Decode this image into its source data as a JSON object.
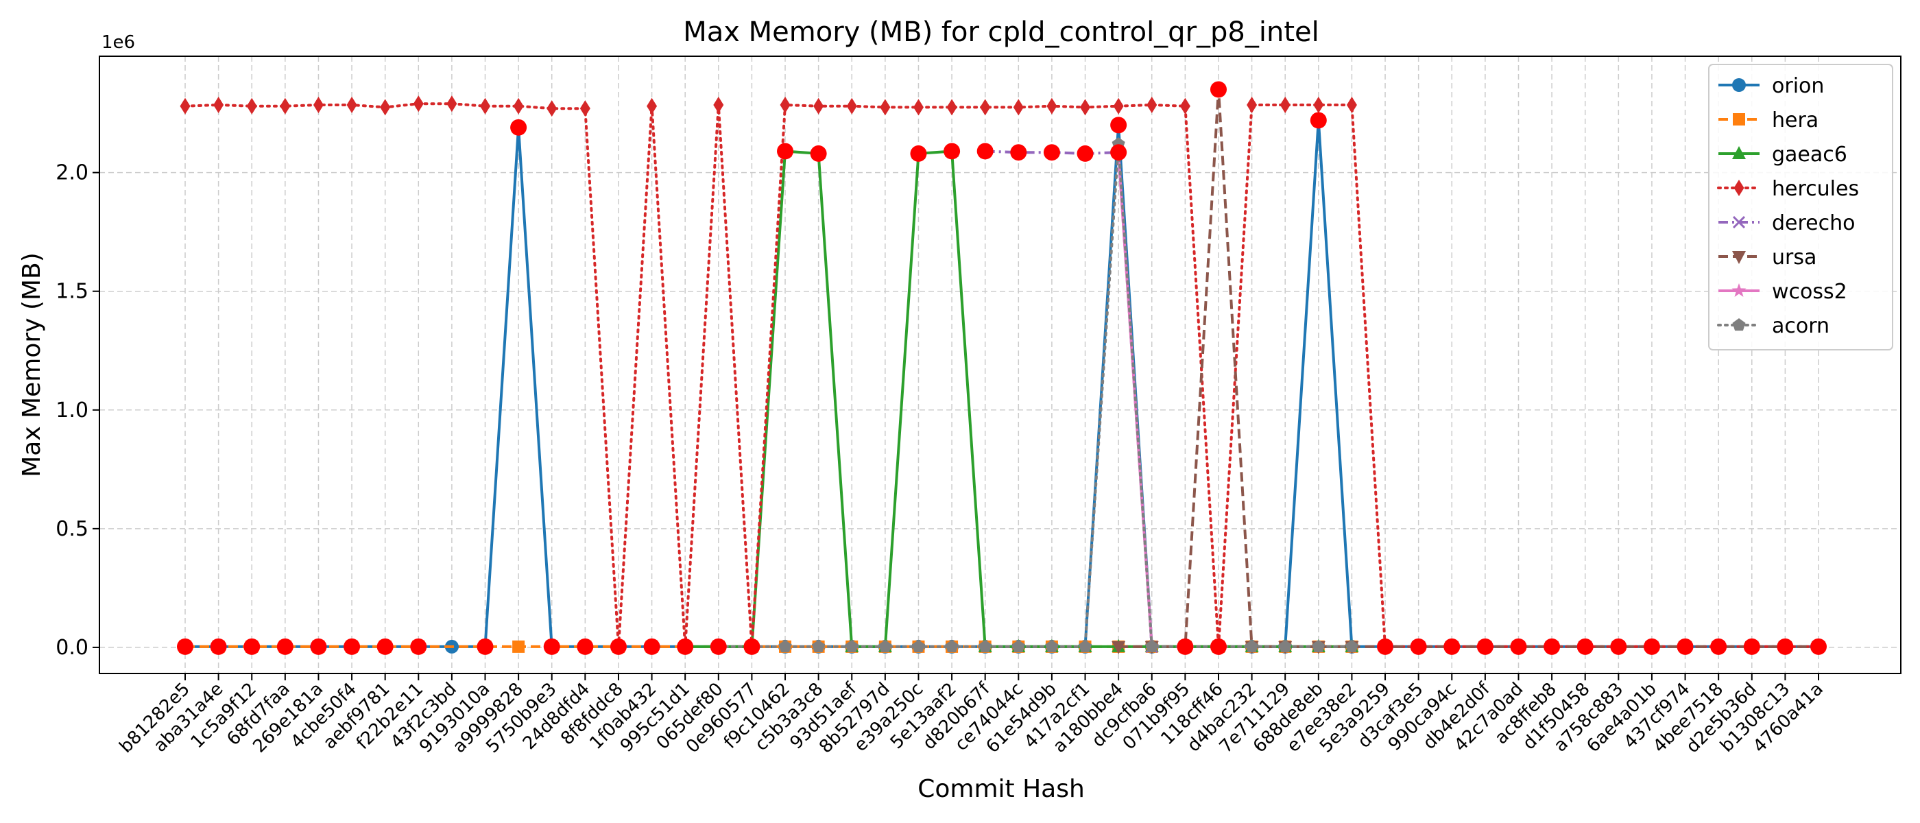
{
  "chart_data": {
    "type": "line",
    "title": "Max Memory (MB) for cpld_control_qr_p8_intel",
    "xlabel": "Commit Hash",
    "ylabel": "Max Memory (MB)",
    "y_offset_label": "1e6",
    "ylim": [
      -0.11,
      2.49
    ],
    "yticks": [
      0.0,
      0.5,
      1.0,
      1.5,
      2.0
    ],
    "ytick_labels": [
      "0.0",
      "0.5",
      "1.0",
      "1.5",
      "2.0"
    ],
    "grid": true,
    "legend_position": "top-right",
    "categories": [
      "b81282e5",
      "aba31a4e",
      "1c5a9f12",
      "68fd7faa",
      "269e181a",
      "4cbe50f4",
      "aebf9781",
      "f22b2e11",
      "43f2c3bd",
      "9193010a",
      "a9999828",
      "5750b9e3",
      "24d8dfd4",
      "8f8fddc8",
      "1f0ab432",
      "995c51d1",
      "065def80",
      "0e960577",
      "f9c10462",
      "c5b3a3c8",
      "93d51aef",
      "8b52797d",
      "e39a250c",
      "5e13aaf2",
      "d820b67f",
      "ce74044c",
      "61e54d9b",
      "417a2cf1",
      "a180bbe4",
      "dc9cfba6",
      "071b9f95",
      "118cff46",
      "d4bac232",
      "7e711129",
      "688de8eb",
      "e7ee38e2",
      "5e3a9259",
      "d3caf3e5",
      "990ca94c",
      "db4e2d0f",
      "42c7a0ad",
      "ac8ffeb8",
      "d1f50458",
      "a758c883",
      "6ae4a01b",
      "437cf974",
      "4bee7518",
      "d2e5b36d",
      "b1308c13",
      "4760a41a"
    ],
    "series": [
      {
        "name": "orion",
        "color": "#1f77b4",
        "dash": "solid",
        "marker": "circle",
        "points": [
          [
            0,
            0.003
          ],
          [
            1,
            0.003
          ],
          [
            2,
            0.003
          ],
          [
            3,
            0.003
          ],
          [
            4,
            0.003
          ],
          [
            5,
            0.003
          ],
          [
            6,
            0.003
          ],
          [
            7,
            0.003
          ],
          [
            8,
            0.003
          ],
          [
            9,
            0.003
          ],
          [
            10,
            2.19
          ],
          [
            11,
            0.003
          ],
          [
            12,
            0.003
          ],
          [
            13,
            0.003
          ],
          [
            14,
            0.003
          ],
          [
            15,
            0.003
          ],
          [
            16,
            0.003
          ],
          [
            17,
            0.003
          ],
          [
            18,
            0.003
          ],
          [
            19,
            0.003
          ],
          [
            20,
            0.003
          ],
          [
            21,
            0.003
          ],
          [
            22,
            0.003
          ],
          [
            23,
            0.003
          ],
          [
            24,
            0.003
          ],
          [
            25,
            0.003
          ],
          [
            26,
            0.003
          ],
          [
            27,
            0.003
          ],
          [
            28,
            2.2
          ],
          [
            29,
            0.003
          ],
          [
            30,
            0.003
          ],
          [
            31,
            0.003
          ],
          [
            32,
            0.003
          ],
          [
            33,
            0.003
          ],
          [
            34,
            2.22
          ],
          [
            35,
            0.003
          ],
          [
            36,
            0.003
          ],
          [
            37,
            0.003
          ],
          [
            38,
            0.003
          ],
          [
            39,
            0.003
          ],
          [
            40,
            0.003
          ],
          [
            41,
            0.003
          ],
          [
            42,
            0.003
          ],
          [
            43,
            0.003
          ],
          [
            44,
            0.003
          ],
          [
            45,
            0.003
          ],
          [
            46,
            0.003
          ],
          [
            47,
            0.003
          ],
          [
            48,
            0.003
          ],
          [
            49,
            0.003
          ]
        ]
      },
      {
        "name": "hera",
        "color": "#ff7f0e",
        "dash": "dashed",
        "marker": "square",
        "points": [
          [
            0,
            0.003
          ],
          [
            1,
            0.003
          ],
          [
            2,
            0.003
          ],
          [
            3,
            0.003
          ],
          [
            4,
            0.003
          ],
          [
            5,
            0.003
          ],
          [
            6,
            0.003
          ],
          [
            7,
            0.003
          ],
          [
            9,
            0.003
          ],
          [
            10,
            0.003
          ],
          [
            11,
            0.003
          ],
          [
            12,
            0.003
          ],
          [
            13,
            0.003
          ],
          [
            14,
            0.003
          ],
          [
            15,
            0.003
          ],
          [
            16,
            0.003
          ],
          [
            17,
            0.003
          ],
          [
            18,
            0.003
          ],
          [
            19,
            0.003
          ],
          [
            20,
            0.003
          ],
          [
            21,
            0.003
          ],
          [
            22,
            0.003
          ],
          [
            23,
            0.003
          ],
          [
            24,
            0.003
          ],
          [
            25,
            0.003
          ],
          [
            26,
            0.003
          ],
          [
            27,
            0.003
          ],
          [
            28,
            0.003
          ],
          [
            29,
            0.003
          ],
          [
            30,
            0.003
          ],
          [
            31,
            0.003
          ],
          [
            32,
            0.003
          ],
          [
            33,
            0.003
          ],
          [
            34,
            0.003
          ],
          [
            35,
            0.003
          ]
        ]
      },
      {
        "name": "gaeac6",
        "color": "#2ca02c",
        "dash": "solid",
        "marker": "triangle-up",
        "points": [
          [
            15,
            0.003
          ],
          [
            16,
            0.003
          ],
          [
            17,
            0.003
          ],
          [
            18,
            2.09
          ],
          [
            19,
            2.08
          ],
          [
            20,
            0.003
          ],
          [
            21,
            0.003
          ],
          [
            22,
            2.08
          ],
          [
            23,
            2.09
          ],
          [
            24,
            0.003
          ],
          [
            25,
            0.003
          ],
          [
            26,
            0.003
          ],
          [
            27,
            0.003
          ],
          [
            28,
            0.003
          ],
          [
            29,
            0.003
          ],
          [
            30,
            0.003
          ],
          [
            31,
            0.003
          ],
          [
            32,
            0.003
          ],
          [
            33,
            0.003
          ],
          [
            34,
            0.003
          ],
          [
            35,
            0.003
          ]
        ]
      },
      {
        "name": "hercules",
        "color": "#d62728",
        "dash": "dotted",
        "marker": "diamond",
        "points": [
          [
            0,
            2.28
          ],
          [
            1,
            2.285
          ],
          [
            2,
            2.28
          ],
          [
            3,
            2.28
          ],
          [
            4,
            2.285
          ],
          [
            5,
            2.285
          ],
          [
            6,
            2.275
          ],
          [
            7,
            2.29
          ],
          [
            8,
            2.29
          ],
          [
            9,
            2.28
          ],
          [
            10,
            2.28
          ],
          [
            11,
            2.27
          ],
          [
            12,
            2.27
          ],
          [
            13,
            0.003
          ],
          [
            14,
            2.28
          ],
          [
            15,
            0.003
          ],
          [
            16,
            2.285
          ],
          [
            17,
            0.003
          ],
          [
            18,
            2.285
          ],
          [
            19,
            2.28
          ],
          [
            20,
            2.28
          ],
          [
            21,
            2.275
          ],
          [
            22,
            2.275
          ],
          [
            23,
            2.275
          ],
          [
            24,
            2.275
          ],
          [
            25,
            2.275
          ],
          [
            26,
            2.28
          ],
          [
            27,
            2.275
          ],
          [
            28,
            2.28
          ],
          [
            29,
            2.285
          ],
          [
            30,
            2.28
          ],
          [
            31,
            0.003
          ],
          [
            32,
            2.285
          ],
          [
            33,
            2.285
          ],
          [
            34,
            2.285
          ],
          [
            35,
            2.285
          ],
          [
            36,
            0.003
          ],
          [
            37,
            0.003
          ],
          [
            38,
            0.003
          ],
          [
            39,
            0.003
          ],
          [
            40,
            0.003
          ],
          [
            41,
            0.003
          ],
          [
            42,
            0.003
          ],
          [
            43,
            0.003
          ],
          [
            44,
            0.003
          ],
          [
            45,
            0.003
          ],
          [
            46,
            0.003
          ],
          [
            47,
            0.003
          ],
          [
            48,
            0.003
          ],
          [
            49,
            0.003
          ]
        ]
      },
      {
        "name": "derecho",
        "color": "#9467bd",
        "dash": "dashdot",
        "marker": "x",
        "points": [
          [
            24,
            2.09
          ],
          [
            25,
            2.085
          ],
          [
            26,
            2.085
          ],
          [
            27,
            2.08
          ],
          [
            28,
            2.085
          ],
          [
            29,
            0.003
          ]
        ]
      },
      {
        "name": "ursa",
        "color": "#8c564b",
        "dash": "dashed",
        "marker": "triangle-down",
        "points": [
          [
            28,
            0.003
          ],
          [
            29,
            0.003
          ],
          [
            30,
            0.003
          ],
          [
            31,
            2.35
          ],
          [
            32,
            0.003
          ],
          [
            33,
            0.003
          ],
          [
            34,
            0.003
          ],
          [
            35,
            0.003
          ],
          [
            36,
            0.003
          ],
          [
            37,
            0.003
          ],
          [
            38,
            0.003
          ],
          [
            39,
            0.003
          ],
          [
            40,
            0.003
          ],
          [
            41,
            0.003
          ],
          [
            42,
            0.003
          ],
          [
            43,
            0.003
          ],
          [
            44,
            0.003
          ],
          [
            45,
            0.003
          ],
          [
            46,
            0.003
          ],
          [
            47,
            0.003
          ],
          [
            48,
            0.003
          ],
          [
            49,
            0.003
          ]
        ]
      },
      {
        "name": "wcoss2",
        "color": "#e377c2",
        "dash": "solid",
        "marker": "star",
        "points": [
          [
            28,
            2.08
          ],
          [
            29,
            0.003
          ]
        ]
      },
      {
        "name": "acorn",
        "color": "#7f7f7f",
        "dash": "dotted",
        "marker": "pentagon",
        "points": [
          [
            16,
            0.003
          ],
          [
            17,
            0.003
          ],
          [
            18,
            0.003
          ],
          [
            19,
            0.003
          ],
          [
            20,
            0.003
          ],
          [
            21,
            0.003
          ],
          [
            22,
            0.003
          ],
          [
            23,
            0.003
          ],
          [
            24,
            0.003
          ],
          [
            25,
            0.003
          ],
          [
            26,
            0.003
          ],
          [
            27,
            0.003
          ],
          [
            28,
            2.12
          ],
          [
            29,
            0.003
          ],
          [
            30,
            0.003
          ],
          [
            31,
            0.003
          ],
          [
            32,
            0.003
          ],
          [
            33,
            0.003
          ],
          [
            34,
            0.003
          ],
          [
            35,
            0.003
          ]
        ]
      }
    ],
    "highlight_color": "#ff0000",
    "highlights": [
      [
        0,
        0.003
      ],
      [
        1,
        0.003
      ],
      [
        2,
        0.003
      ],
      [
        3,
        0.003
      ],
      [
        4,
        0.003
      ],
      [
        5,
        0.003
      ],
      [
        6,
        0.003
      ],
      [
        7,
        0.003
      ],
      [
        9,
        0.003
      ],
      [
        10,
        2.19
      ],
      [
        11,
        0.003
      ],
      [
        12,
        0.003
      ],
      [
        13,
        0.003
      ],
      [
        14,
        0.003
      ],
      [
        15,
        0.003
      ],
      [
        16,
        0.003
      ],
      [
        17,
        0.003
      ],
      [
        18,
        2.09
      ],
      [
        19,
        2.08
      ],
      [
        22,
        2.08
      ],
      [
        23,
        2.09
      ],
      [
        24,
        2.09
      ],
      [
        25,
        2.085
      ],
      [
        26,
        2.085
      ],
      [
        27,
        2.08
      ],
      [
        28,
        2.2
      ],
      [
        28,
        2.085
      ],
      [
        30,
        0.003
      ],
      [
        31,
        2.35
      ],
      [
        31,
        0.003
      ],
      [
        34,
        2.22
      ],
      [
        36,
        0.003
      ],
      [
        37,
        0.003
      ],
      [
        38,
        0.003
      ],
      [
        39,
        0.003
      ],
      [
        40,
        0.003
      ],
      [
        41,
        0.003
      ],
      [
        42,
        0.003
      ],
      [
        43,
        0.003
      ],
      [
        44,
        0.003
      ],
      [
        45,
        0.003
      ],
      [
        46,
        0.003
      ],
      [
        47,
        0.003
      ],
      [
        48,
        0.003
      ],
      [
        49,
        0.003
      ]
    ]
  }
}
